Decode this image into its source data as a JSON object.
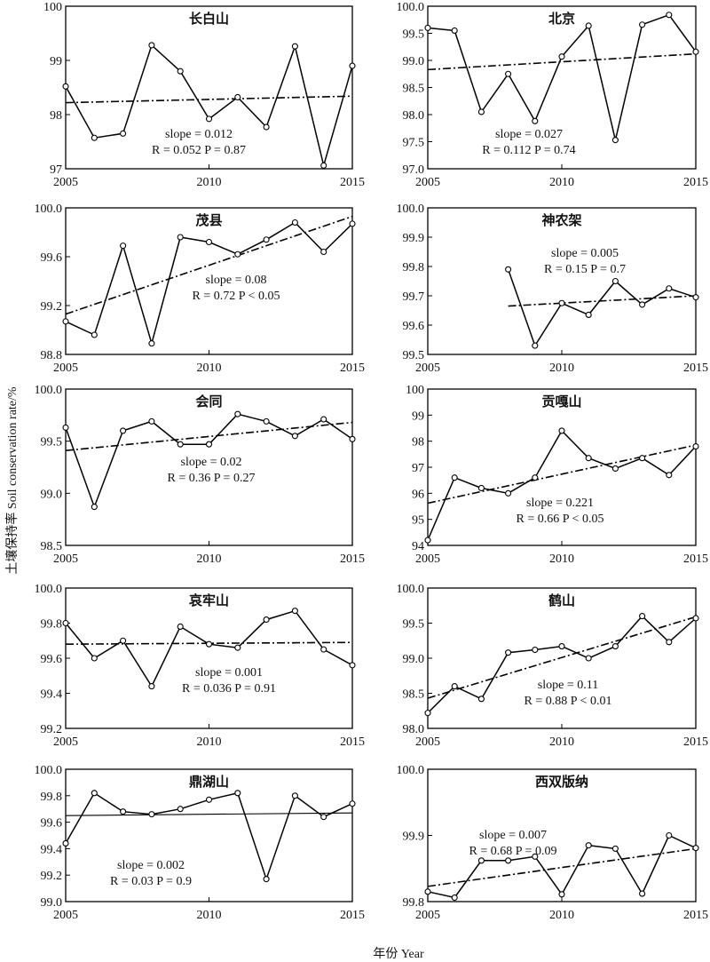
{
  "figure": {
    "ylabel": "土壤保持率 Soil conservation rate/%",
    "xlabel": "年份 Year"
  },
  "chart_data": [
    {
      "type": "line",
      "title": "长白山",
      "x": [
        2005,
        2006,
        2007,
        2008,
        2009,
        2010,
        2011,
        2012,
        2013,
        2014,
        2015
      ],
      "values": [
        98.52,
        97.57,
        97.65,
        99.28,
        98.8,
        97.92,
        98.32,
        97.77,
        99.26,
        97.06,
        98.9
      ],
      "ylim": [
        97,
        100
      ],
      "yticks": [
        97,
        98,
        99,
        100
      ],
      "ytick_labels": [
        "97",
        "98",
        "99",
        "100"
      ],
      "xlim": [
        2005,
        2015
      ],
      "xticks": [
        2005,
        2010,
        2015
      ],
      "trend": {
        "start_x": 2005,
        "start_y": 98.22,
        "end_x": 2015,
        "end_y": 98.34,
        "style": "dashdot"
      },
      "annotation": {
        "slope": "slope = 0.012",
        "stats": "R = 0.052    P = 0.87"
      }
    },
    {
      "type": "line",
      "title": "北京",
      "x": [
        2005,
        2006,
        2007,
        2008,
        2009,
        2010,
        2011,
        2012,
        2013,
        2014,
        2015
      ],
      "values": [
        99.6,
        99.55,
        98.05,
        98.75,
        97.88,
        99.07,
        99.64,
        97.53,
        99.66,
        99.84,
        99.16
      ],
      "ylim": [
        97.0,
        100.0
      ],
      "yticks": [
        97.0,
        97.5,
        98.0,
        98.5,
        99.0,
        99.5,
        100.0
      ],
      "ytick_labels": [
        "97.0",
        "97.5",
        "98.0",
        "98.5",
        "99.0",
        "99.5",
        "100.0"
      ],
      "xlim": [
        2005,
        2015
      ],
      "xticks": [
        2005,
        2010,
        2015
      ],
      "trend": {
        "start_x": 2005,
        "start_y": 98.83,
        "end_x": 2015,
        "end_y": 99.12,
        "style": "dashdot"
      },
      "annotation": {
        "slope": "slope = 0.027",
        "stats": "R = 0.112    P = 0.74"
      }
    },
    {
      "type": "line",
      "title": "茂县",
      "x": [
        2005,
        2006,
        2007,
        2008,
        2009,
        2010,
        2011,
        2012,
        2013,
        2014,
        2015
      ],
      "values": [
        99.07,
        98.96,
        99.69,
        98.89,
        99.76,
        99.72,
        99.62,
        99.74,
        99.88,
        99.64,
        99.87
      ],
      "ylim": [
        98.8,
        100.0
      ],
      "yticks": [
        98.8,
        99.2,
        99.6,
        100.0
      ],
      "ytick_labels": [
        "98.8",
        "99.2",
        "99.6",
        "100.0"
      ],
      "xlim": [
        2005,
        2015
      ],
      "xticks": [
        2005,
        2010,
        2015
      ],
      "trend": {
        "start_x": 2005,
        "start_y": 99.13,
        "end_x": 2015,
        "end_y": 99.93,
        "style": "dashdot"
      },
      "annotation": {
        "slope": "slope = 0.08",
        "stats": "R = 0.72    P < 0.05"
      }
    },
    {
      "type": "line",
      "title": "神农架",
      "x": [
        2008,
        2009,
        2010,
        2011,
        2012,
        2013,
        2014,
        2015
      ],
      "values": [
        99.79,
        99.53,
        99.675,
        99.635,
        99.75,
        99.67,
        99.725,
        99.695
      ],
      "ylim": [
        99.5,
        100.0
      ],
      "yticks": [
        99.5,
        99.6,
        99.7,
        99.8,
        99.9,
        100.0
      ],
      "ytick_labels": [
        "99.5",
        "99.6",
        "99.7",
        "99.8",
        "99.9",
        "100.0"
      ],
      "xlim": [
        2005,
        2015
      ],
      "xticks": [
        2005,
        2010,
        2015
      ],
      "trend": {
        "start_x": 2008,
        "start_y": 99.665,
        "end_x": 2015,
        "end_y": 99.7,
        "style": "dashdot"
      },
      "annotation": {
        "slope": "slope = 0.005",
        "stats": "R = 0.15    P = 0.7"
      }
    },
    {
      "type": "line",
      "title": "会同",
      "x": [
        2005,
        2006,
        2007,
        2008,
        2009,
        2010,
        2011,
        2012,
        2013,
        2014,
        2015
      ],
      "values": [
        99.63,
        98.87,
        99.6,
        99.69,
        99.47,
        99.47,
        99.76,
        99.69,
        99.55,
        99.71,
        99.52
      ],
      "ylim": [
        98.5,
        100.0
      ],
      "yticks": [
        98.5,
        99.0,
        99.5,
        100.0
      ],
      "ytick_labels": [
        "98.5",
        "99.0",
        "99.5",
        "100.0"
      ],
      "xlim": [
        2005,
        2015
      ],
      "xticks": [
        2005,
        2010,
        2015
      ],
      "trend": {
        "start_x": 2005,
        "start_y": 99.41,
        "end_x": 2015,
        "end_y": 99.68,
        "style": "dashdot"
      },
      "annotation": {
        "slope": "slope = 0.02",
        "stats": "R = 0.36    P = 0.27"
      }
    },
    {
      "type": "line",
      "title": "贡嘎山",
      "x": [
        2005,
        2006,
        2007,
        2008,
        2009,
        2010,
        2011,
        2012,
        2013,
        2014,
        2015
      ],
      "values": [
        94.2,
        96.6,
        96.2,
        96.0,
        96.6,
        98.4,
        97.35,
        96.95,
        97.35,
        96.7,
        97.8
      ],
      "ylim": [
        94,
        100
      ],
      "yticks": [
        94,
        95,
        96,
        97,
        98,
        99,
        100
      ],
      "ytick_labels": [
        "94",
        "95",
        "96",
        "97",
        "98",
        "99",
        "100"
      ],
      "xlim": [
        2005,
        2015
      ],
      "xticks": [
        2005,
        2010,
        2015
      ],
      "trend": {
        "start_x": 2005,
        "start_y": 95.62,
        "end_x": 2015,
        "end_y": 97.85,
        "style": "dashdot"
      },
      "annotation": {
        "slope": "slope = 0.221",
        "stats": "R = 0.66    P < 0.05"
      }
    },
    {
      "type": "line",
      "title": "哀牢山",
      "x": [
        2005,
        2006,
        2007,
        2008,
        2009,
        2010,
        2011,
        2012,
        2013,
        2014,
        2015
      ],
      "values": [
        99.8,
        99.6,
        99.7,
        99.44,
        99.78,
        99.68,
        99.66,
        99.82,
        99.87,
        99.65,
        99.56
      ],
      "ylim": [
        99.2,
        100.0
      ],
      "yticks": [
        99.2,
        99.4,
        99.6,
        99.8,
        100.0
      ],
      "ytick_labels": [
        "99.2",
        "99.4",
        "99.6",
        "99.8",
        "100.0"
      ],
      "xlim": [
        2005,
        2015
      ],
      "xticks": [
        2005,
        2010,
        2015
      ],
      "trend": {
        "start_x": 2005,
        "start_y": 99.68,
        "end_x": 2015,
        "end_y": 99.69,
        "style": "dashdot"
      },
      "annotation": {
        "slope": "slope = 0.001",
        "stats": "R = 0.036    P = 0.91"
      }
    },
    {
      "type": "line",
      "title": "鹤山",
      "x": [
        2005,
        2006,
        2007,
        2008,
        2009,
        2010,
        2011,
        2012,
        2013,
        2014,
        2015
      ],
      "values": [
        98.22,
        98.6,
        98.42,
        99.08,
        99.12,
        99.17,
        99.0,
        99.17,
        99.6,
        99.23,
        99.57
      ],
      "ylim": [
        98.0,
        100.0
      ],
      "yticks": [
        98.0,
        98.5,
        99.0,
        99.5,
        100.0
      ],
      "ytick_labels": [
        "98.0",
        "98.5",
        "99.0",
        "99.5",
        "100.0"
      ],
      "xlim": [
        2005,
        2015
      ],
      "xticks": [
        2005,
        2010,
        2015
      ],
      "trend": {
        "start_x": 2005,
        "start_y": 98.43,
        "end_x": 2015,
        "end_y": 99.59,
        "style": "dashdot"
      },
      "annotation": {
        "slope": "slope = 0.11",
        "stats": "R = 0.88    P < 0.01"
      }
    },
    {
      "type": "line",
      "title": "鼎湖山",
      "x": [
        2005,
        2006,
        2007,
        2008,
        2009,
        2010,
        2011,
        2012,
        2013,
        2014,
        2015
      ],
      "values": [
        99.44,
        99.82,
        99.68,
        99.66,
        99.7,
        99.77,
        99.82,
        99.17,
        99.8,
        99.64,
        99.74
      ],
      "ylim": [
        99.0,
        100.0
      ],
      "yticks": [
        99.0,
        99.2,
        99.4,
        99.6,
        99.8,
        100.0
      ],
      "ytick_labels": [
        "99.0",
        "99.2",
        "99.4",
        "99.6",
        "99.8",
        "100.0"
      ],
      "xlim": [
        2005,
        2015
      ],
      "xticks": [
        2005,
        2010,
        2015
      ],
      "trend": {
        "start_x": 2005,
        "start_y": 99.65,
        "end_x": 2015,
        "end_y": 99.67,
        "style": "solid"
      },
      "annotation": {
        "slope": "slope = 0.002",
        "stats": "R = 0.03    P = 0.9"
      }
    },
    {
      "type": "line",
      "title": "西双版纳",
      "x": [
        2005,
        2006,
        2007,
        2008,
        2009,
        2010,
        2011,
        2012,
        2013,
        2014,
        2015
      ],
      "values": [
        99.815,
        99.806,
        99.862,
        99.862,
        99.868,
        99.811,
        99.885,
        99.88,
        99.812,
        99.9,
        99.881
      ],
      "ylim": [
        99.8,
        100.0
      ],
      "yticks": [
        99.8,
        99.9,
        100.0
      ],
      "ytick_labels": [
        "99.8",
        "99.9",
        "100.0"
      ],
      "xlim": [
        2005,
        2015
      ],
      "xticks": [
        2005,
        2010,
        2015
      ],
      "trend": {
        "start_x": 2005,
        "start_y": 99.823,
        "end_x": 2015,
        "end_y": 99.88,
        "style": "dashdot"
      },
      "annotation": {
        "slope": "slope = 0.007",
        "stats": "R = 0.68    P = 0.09"
      }
    }
  ]
}
